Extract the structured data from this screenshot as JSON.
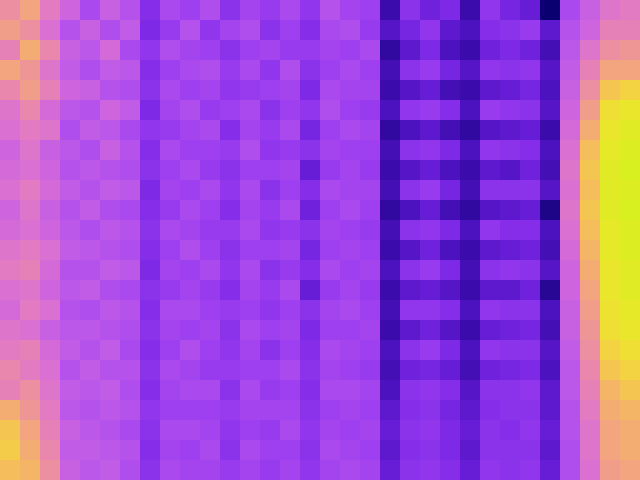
{
  "chart_data": {
    "type": "heatmap",
    "tick_labels": false,
    "cells": [
      [
        0.66,
        0.72,
        0.6,
        0.52,
        0.4,
        0.5,
        0.44,
        0.28,
        0.4,
        0.36,
        0.42,
        0.3,
        0.38,
        0.34,
        0.4,
        0.32,
        0.44,
        0.38,
        0.36,
        0.1,
        0.3,
        0.22,
        0.26,
        0.1,
        0.32,
        0.24,
        0.2,
        0.0,
        0.4,
        0.5,
        0.58,
        0.6
      ],
      [
        0.7,
        0.66,
        0.56,
        0.44,
        0.5,
        0.42,
        0.48,
        0.26,
        0.34,
        0.44,
        0.32,
        0.38,
        0.42,
        0.3,
        0.36,
        0.28,
        0.4,
        0.42,
        0.34,
        0.16,
        0.24,
        0.32,
        0.18,
        0.14,
        0.28,
        0.3,
        0.34,
        0.18,
        0.44,
        0.52,
        0.62,
        0.62
      ],
      [
        0.62,
        0.74,
        0.64,
        0.5,
        0.46,
        0.54,
        0.4,
        0.32,
        0.42,
        0.38,
        0.36,
        0.3,
        0.36,
        0.38,
        0.34,
        0.34,
        0.38,
        0.36,
        0.4,
        0.08,
        0.18,
        0.26,
        0.14,
        0.1,
        0.22,
        0.26,
        0.22,
        0.12,
        0.46,
        0.58,
        0.66,
        0.68
      ],
      [
        0.72,
        0.68,
        0.58,
        0.48,
        0.42,
        0.48,
        0.46,
        0.28,
        0.36,
        0.4,
        0.42,
        0.34,
        0.4,
        0.32,
        0.42,
        0.3,
        0.36,
        0.4,
        0.36,
        0.12,
        0.3,
        0.34,
        0.24,
        0.16,
        0.32,
        0.3,
        0.32,
        0.16,
        0.48,
        0.62,
        0.72,
        0.72
      ],
      [
        0.64,
        0.7,
        0.62,
        0.52,
        0.5,
        0.44,
        0.42,
        0.3,
        0.4,
        0.36,
        0.38,
        0.32,
        0.34,
        0.36,
        0.38,
        0.26,
        0.4,
        0.38,
        0.38,
        0.1,
        0.16,
        0.2,
        0.12,
        0.1,
        0.18,
        0.2,
        0.24,
        0.14,
        0.5,
        0.66,
        0.8,
        0.84
      ],
      [
        0.58,
        0.64,
        0.54,
        0.46,
        0.44,
        0.52,
        0.48,
        0.26,
        0.38,
        0.42,
        0.34,
        0.36,
        0.4,
        0.3,
        0.36,
        0.32,
        0.42,
        0.36,
        0.34,
        0.14,
        0.32,
        0.34,
        0.28,
        0.14,
        0.34,
        0.32,
        0.3,
        0.16,
        0.52,
        0.7,
        0.88,
        0.92
      ],
      [
        0.56,
        0.6,
        0.58,
        0.42,
        0.48,
        0.46,
        0.4,
        0.32,
        0.34,
        0.38,
        0.4,
        0.28,
        0.38,
        0.34,
        0.4,
        0.24,
        0.36,
        0.4,
        0.38,
        0.08,
        0.14,
        0.18,
        0.12,
        0.08,
        0.16,
        0.18,
        0.2,
        0.1,
        0.54,
        0.74,
        0.92,
        0.96
      ],
      [
        0.52,
        0.58,
        0.5,
        0.46,
        0.42,
        0.5,
        0.44,
        0.28,
        0.4,
        0.36,
        0.36,
        0.34,
        0.42,
        0.32,
        0.34,
        0.3,
        0.38,
        0.36,
        0.36,
        0.12,
        0.3,
        0.32,
        0.26,
        0.14,
        0.32,
        0.3,
        0.28,
        0.14,
        0.56,
        0.78,
        0.94,
        0.98
      ],
      [
        0.54,
        0.56,
        0.52,
        0.44,
        0.46,
        0.44,
        0.42,
        0.3,
        0.36,
        0.4,
        0.34,
        0.3,
        0.36,
        0.36,
        0.38,
        0.2,
        0.34,
        0.38,
        0.34,
        0.1,
        0.16,
        0.2,
        0.14,
        0.1,
        0.18,
        0.16,
        0.22,
        0.12,
        0.58,
        0.8,
        0.96,
        1.0
      ],
      [
        0.56,
        0.6,
        0.54,
        0.48,
        0.44,
        0.48,
        0.46,
        0.26,
        0.38,
        0.36,
        0.4,
        0.32,
        0.4,
        0.3,
        0.36,
        0.28,
        0.4,
        0.38,
        0.38,
        0.12,
        0.3,
        0.34,
        0.24,
        0.12,
        0.3,
        0.3,
        0.3,
        0.16,
        0.56,
        0.78,
        0.96,
        0.98
      ],
      [
        0.52,
        0.58,
        0.5,
        0.44,
        0.48,
        0.42,
        0.4,
        0.28,
        0.34,
        0.4,
        0.36,
        0.28,
        0.38,
        0.34,
        0.4,
        0.22,
        0.36,
        0.4,
        0.36,
        0.08,
        0.14,
        0.2,
        0.12,
        0.08,
        0.16,
        0.18,
        0.2,
        0.04,
        0.58,
        0.8,
        0.96,
        1.0
      ],
      [
        0.54,
        0.56,
        0.52,
        0.46,
        0.42,
        0.46,
        0.44,
        0.3,
        0.4,
        0.38,
        0.34,
        0.34,
        0.4,
        0.32,
        0.34,
        0.3,
        0.38,
        0.36,
        0.34,
        0.12,
        0.3,
        0.32,
        0.26,
        0.14,
        0.32,
        0.28,
        0.28,
        0.14,
        0.56,
        0.78,
        0.94,
        0.98
      ],
      [
        0.58,
        0.6,
        0.56,
        0.48,
        0.46,
        0.44,
        0.42,
        0.28,
        0.36,
        0.42,
        0.36,
        0.3,
        0.36,
        0.36,
        0.38,
        0.24,
        0.36,
        0.38,
        0.36,
        0.1,
        0.16,
        0.22,
        0.14,
        0.1,
        0.18,
        0.2,
        0.22,
        0.12,
        0.54,
        0.76,
        0.94,
        0.98
      ],
      [
        0.6,
        0.62,
        0.54,
        0.44,
        0.44,
        0.48,
        0.46,
        0.26,
        0.38,
        0.36,
        0.4,
        0.32,
        0.4,
        0.3,
        0.34,
        0.28,
        0.4,
        0.36,
        0.38,
        0.14,
        0.3,
        0.34,
        0.26,
        0.12,
        0.3,
        0.32,
        0.3,
        0.16,
        0.52,
        0.74,
        0.92,
        0.96
      ],
      [
        0.56,
        0.58,
        0.52,
        0.46,
        0.48,
        0.42,
        0.4,
        0.3,
        0.34,
        0.38,
        0.34,
        0.28,
        0.38,
        0.34,
        0.4,
        0.2,
        0.34,
        0.38,
        0.34,
        0.1,
        0.18,
        0.2,
        0.16,
        0.1,
        0.18,
        0.18,
        0.22,
        0.06,
        0.52,
        0.72,
        0.92,
        0.96
      ],
      [
        0.54,
        0.6,
        0.56,
        0.44,
        0.42,
        0.46,
        0.44,
        0.28,
        0.4,
        0.4,
        0.36,
        0.34,
        0.36,
        0.32,
        0.36,
        0.3,
        0.38,
        0.4,
        0.36,
        0.12,
        0.32,
        0.32,
        0.28,
        0.14,
        0.32,
        0.3,
        0.3,
        0.14,
        0.5,
        0.7,
        0.9,
        0.94
      ],
      [
        0.58,
        0.56,
        0.5,
        0.46,
        0.46,
        0.44,
        0.42,
        0.3,
        0.38,
        0.36,
        0.38,
        0.3,
        0.4,
        0.36,
        0.38,
        0.26,
        0.36,
        0.36,
        0.38,
        0.1,
        0.18,
        0.22,
        0.16,
        0.1,
        0.2,
        0.22,
        0.24,
        0.12,
        0.5,
        0.68,
        0.88,
        0.92
      ],
      [
        0.6,
        0.62,
        0.54,
        0.48,
        0.44,
        0.48,
        0.4,
        0.28,
        0.36,
        0.42,
        0.36,
        0.32,
        0.38,
        0.3,
        0.36,
        0.28,
        0.4,
        0.38,
        0.36,
        0.14,
        0.3,
        0.34,
        0.26,
        0.14,
        0.32,
        0.3,
        0.3,
        0.16,
        0.48,
        0.66,
        0.84,
        0.88
      ],
      [
        0.64,
        0.6,
        0.56,
        0.44,
        0.48,
        0.44,
        0.44,
        0.3,
        0.4,
        0.38,
        0.34,
        0.34,
        0.36,
        0.36,
        0.4,
        0.3,
        0.38,
        0.36,
        0.34,
        0.12,
        0.22,
        0.24,
        0.2,
        0.12,
        0.22,
        0.24,
        0.26,
        0.14,
        0.46,
        0.64,
        0.8,
        0.84
      ],
      [
        0.62,
        0.66,
        0.58,
        0.48,
        0.46,
        0.48,
        0.42,
        0.28,
        0.38,
        0.4,
        0.4,
        0.3,
        0.4,
        0.34,
        0.36,
        0.28,
        0.4,
        0.4,
        0.38,
        0.14,
        0.3,
        0.32,
        0.28,
        0.16,
        0.3,
        0.3,
        0.32,
        0.18,
        0.46,
        0.62,
        0.76,
        0.8
      ],
      [
        0.74,
        0.68,
        0.6,
        0.46,
        0.44,
        0.46,
        0.44,
        0.32,
        0.36,
        0.36,
        0.36,
        0.34,
        0.38,
        0.38,
        0.38,
        0.3,
        0.36,
        0.38,
        0.36,
        0.18,
        0.28,
        0.3,
        0.24,
        0.18,
        0.28,
        0.3,
        0.3,
        0.18,
        0.44,
        0.6,
        0.74,
        0.76
      ],
      [
        0.8,
        0.72,
        0.62,
        0.5,
        0.46,
        0.44,
        0.4,
        0.3,
        0.4,
        0.4,
        0.38,
        0.32,
        0.36,
        0.34,
        0.4,
        0.32,
        0.38,
        0.36,
        0.38,
        0.2,
        0.3,
        0.32,
        0.26,
        0.2,
        0.3,
        0.28,
        0.32,
        0.2,
        0.44,
        0.58,
        0.72,
        0.74
      ],
      [
        0.82,
        0.74,
        0.64,
        0.48,
        0.48,
        0.46,
        0.44,
        0.28,
        0.38,
        0.36,
        0.4,
        0.3,
        0.4,
        0.36,
        0.36,
        0.3,
        0.4,
        0.38,
        0.36,
        0.18,
        0.28,
        0.3,
        0.26,
        0.18,
        0.3,
        0.3,
        0.3,
        0.18,
        0.42,
        0.58,
        0.72,
        0.74
      ],
      [
        0.78,
        0.76,
        0.66,
        0.5,
        0.46,
        0.48,
        0.42,
        0.3,
        0.4,
        0.38,
        0.38,
        0.34,
        0.38,
        0.34,
        0.38,
        0.32,
        0.38,
        0.4,
        0.38,
        0.2,
        0.3,
        0.32,
        0.28,
        0.2,
        0.32,
        0.3,
        0.32,
        0.2,
        0.42,
        0.56,
        0.7,
        0.72
      ]
    ]
  }
}
